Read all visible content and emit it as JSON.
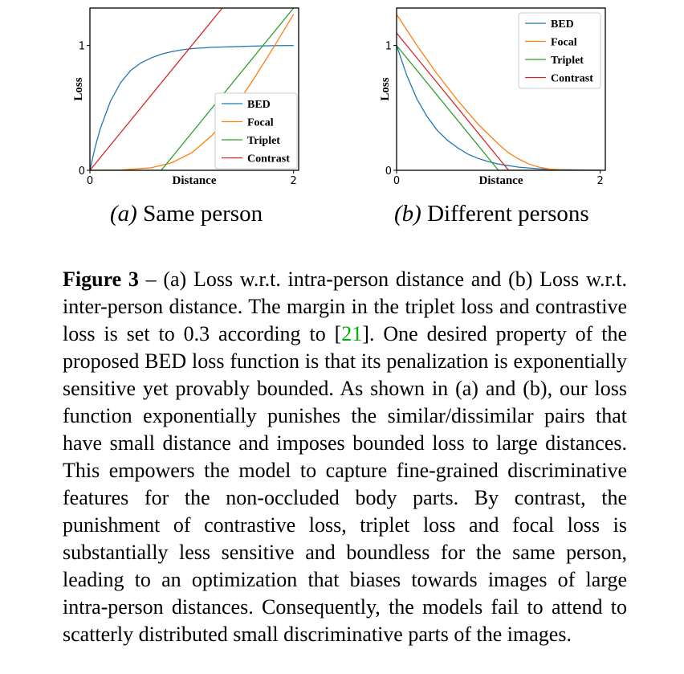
{
  "chart_data": [
    {
      "type": "line",
      "panel": "a",
      "xlabel": "Distance",
      "ylabel": "Loss",
      "xlim": [
        0,
        2.05
      ],
      "ylim": [
        0,
        1.3
      ],
      "xticks": [
        0,
        2
      ],
      "yticks": [
        0,
        1
      ],
      "legend_position": "lower-right",
      "grid": false,
      "series": [
        {
          "name": "BED",
          "color": "#1f77b4",
          "x": [
            0,
            0.05,
            0.1,
            0.2,
            0.3,
            0.4,
            0.5,
            0.6,
            0.7,
            0.8,
            0.9,
            1.0,
            1.2,
            1.4,
            1.6,
            1.8,
            2.0
          ],
          "y": [
            0,
            0.18,
            0.33,
            0.55,
            0.7,
            0.8,
            0.86,
            0.9,
            0.93,
            0.95,
            0.965,
            0.975,
            0.985,
            0.99,
            0.995,
            0.998,
            1.0
          ]
        },
        {
          "name": "Focal",
          "color": "#ff7f0e",
          "x": [
            0,
            0.3,
            0.6,
            0.8,
            1.0,
            1.2,
            1.4,
            1.6,
            1.8,
            2.0
          ],
          "y": [
            0,
            0.002,
            0.02,
            0.06,
            0.14,
            0.28,
            0.48,
            0.72,
            0.98,
            1.25
          ]
        },
        {
          "name": "Triplet",
          "color": "#2ca02c",
          "x": [
            0,
            0.7,
            2.0
          ],
          "y": [
            0,
            0,
            1.3
          ]
        },
        {
          "name": "Contrast",
          "color": "#d62728",
          "x": [
            0,
            1.3
          ],
          "y": [
            0,
            1.3
          ]
        }
      ]
    },
    {
      "type": "line",
      "panel": "b",
      "xlabel": "Distance",
      "ylabel": "Loss",
      "xlim": [
        0,
        2.05
      ],
      "ylim": [
        0,
        1.3
      ],
      "xticks": [
        0,
        2
      ],
      "yticks": [
        0,
        1
      ],
      "legend_position": "upper-right",
      "grid": false,
      "series": [
        {
          "name": "BED",
          "color": "#1f77b4",
          "x": [
            0,
            0.1,
            0.2,
            0.3,
            0.4,
            0.5,
            0.6,
            0.7,
            0.8,
            0.9,
            1.0,
            1.2,
            1.4,
            1.6,
            1.8,
            2.0
          ],
          "y": [
            1.0,
            0.76,
            0.57,
            0.43,
            0.32,
            0.24,
            0.18,
            0.13,
            0.095,
            0.07,
            0.05,
            0.025,
            0.012,
            0.006,
            0.003,
            0.001
          ]
        },
        {
          "name": "Focal",
          "color": "#ff7f0e",
          "x": [
            0,
            0.2,
            0.4,
            0.6,
            0.8,
            1.0,
            1.1,
            1.2,
            1.3,
            1.4,
            1.5,
            1.6,
            1.8,
            2.0
          ],
          "y": [
            1.25,
            1.0,
            0.77,
            0.56,
            0.37,
            0.21,
            0.14,
            0.09,
            0.05,
            0.025,
            0.01,
            0.004,
            0.001,
            0
          ]
        },
        {
          "name": "Triplet",
          "color": "#2ca02c",
          "x": [
            0,
            1.0,
            2.0
          ],
          "y": [
            1.0,
            0,
            0
          ]
        },
        {
          "name": "Contrast",
          "color": "#d62728",
          "x": [
            0,
            1.1,
            2.0
          ],
          "y": [
            1.1,
            0,
            0
          ]
        }
      ]
    }
  ],
  "subcaptions": [
    {
      "label": "(a)",
      "text": "Same person"
    },
    {
      "label": "(b)",
      "text": "Different persons"
    }
  ],
  "caption": {
    "figure_label": "Figure 3",
    "text_before_cite": " – (a) Loss w.r.t. intra-person distance and (b) Loss w.r.t. inter-person distance.  The margin in the triplet loss and contrastive loss is set to 0.3 according to [",
    "citation": "21",
    "text_after_cite": "].  One desired property of the proposed BED loss function is that its penalization is exponentially sensitive yet provably bounded.  As shown in (a) and (b), our loss function exponentially punishes the similar/dissimilar pairs that have small distance and imposes bounded loss to large distances.  This empowers the model to capture fine-grained discriminative features for the non-occluded body parts.  By contrast, the punishment of contrastive loss, triplet loss and focal loss is substantially less sensitive and boundless for the same person, leading to an optimization that biases towards images of large intra-person distances. Consequently, the models fail to attend to scatterly distributed small discriminative parts of the images."
  }
}
